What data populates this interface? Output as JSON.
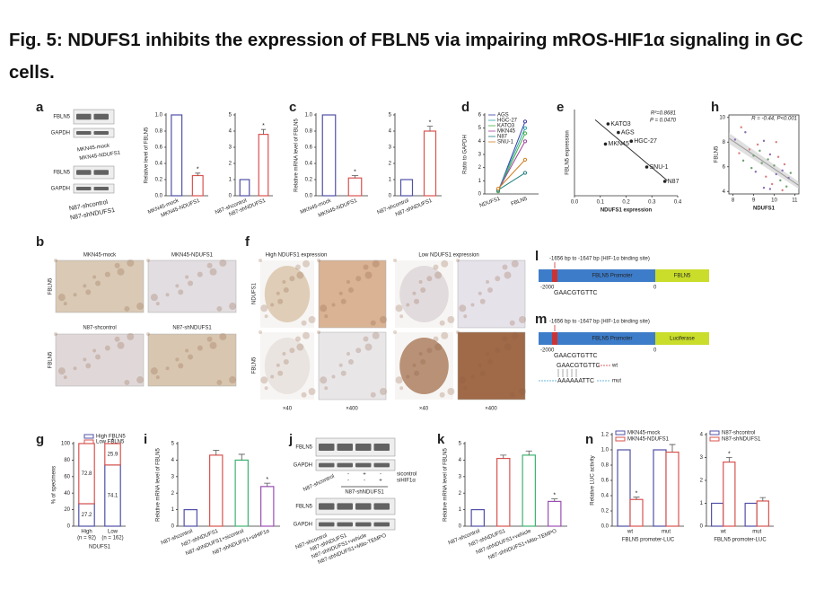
{
  "title": "Fig. 5: NDUFS1 inhibits the expression of FBLN5 via impairing mROS-HIF1α signaling in GC cells.",
  "panels": {
    "a": {
      "letter": "a",
      "blot_labels": [
        "FBLN5",
        "GAPDH",
        "FBLN5",
        "GAPDH"
      ],
      "lanes": [
        "MKN45-mock",
        "MKN45-NDUFS1",
        "N87-shcontrol",
        "N87-shNDUFS1"
      ],
      "charts": [
        {
          "type": "bar",
          "ylabel": "Relative level of FBLN5",
          "categories": [
            "MKN45-mock",
            "MKN45-NDUFS1"
          ],
          "values": [
            1.0,
            0.25
          ],
          "errors": [
            0,
            0.03
          ],
          "colors": [
            "#5050a8",
            "#d9534f"
          ],
          "ylim": [
            0,
            1.0
          ],
          "yticks": [
            {
              "value": 0,
              "label": "0.0"
            },
            {
              "value": 0.2,
              "label": "0.2"
            },
            {
              "value": 0.4,
              "label": "0.4"
            },
            {
              "value": 0.6,
              "label": "0.6"
            },
            {
              "value": 0.8,
              "label": "0.8"
            },
            {
              "value": 1.0,
              "label": "1.0"
            }
          ],
          "asterisk": "*",
          "asterisk_on": [
            1
          ]
        },
        {
          "type": "bar",
          "categories": [
            "N87-shcontrol",
            "N87-shNDUFS1"
          ],
          "values": [
            1,
            3.8
          ],
          "errors": [
            0,
            0.3
          ],
          "colors": [
            "#5050a8",
            "#d9534f"
          ],
          "ylim": [
            0,
            5
          ],
          "yticks": [
            0,
            1,
            2,
            3,
            4,
            5
          ],
          "asterisk": "*",
          "asterisk_on": [
            1
          ]
        }
      ]
    },
    "c": {
      "letter": "c",
      "charts": [
        {
          "type": "bar",
          "ylabel": "Relative mRNA level of FBLN5",
          "categories": [
            "MKN45-mock",
            "MKN45-NDUFS1"
          ],
          "values": [
            1.0,
            0.22
          ],
          "errors": [
            0,
            0.03
          ],
          "colors": [
            "#5050a8",
            "#d9534f"
          ],
          "ylim": [
            0,
            1.0
          ],
          "yticks": [
            {
              "value": 0,
              "label": "0.0"
            },
            {
              "value": 0.2,
              "label": "0.2"
            },
            {
              "value": 0.4,
              "label": "0.4"
            },
            {
              "value": 0.6,
              "label": "0.6"
            },
            {
              "value": 0.8,
              "label": "0.8"
            },
            {
              "value": 1.0,
              "label": "1.0"
            }
          ],
          "asterisk": "*",
          "asterisk_on": [
            1
          ]
        },
        {
          "type": "bar",
          "categories": [
            "N87-shcontrol",
            "N87-shNDUFS1"
          ],
          "values": [
            1,
            4.0
          ],
          "errors": [
            0,
            0.3
          ],
          "colors": [
            "#5050a8",
            "#d9534f"
          ],
          "ylim": [
            0,
            5
          ],
          "yticks": [
            0,
            1,
            2,
            3,
            4,
            5
          ],
          "asterisk": "*",
          "asterisk_on": [
            1
          ]
        }
      ]
    },
    "d": {
      "letter": "d",
      "charts": [
        {
          "type": "line",
          "ylabel": "Ratio to GAPDH",
          "categories": [
            "NDUFS1",
            "FBLN5"
          ],
          "ylim": [
            0,
            6
          ],
          "yticks": [
            0,
            1,
            2,
            3,
            4,
            5,
            6
          ],
          "series": [
            {
              "name": "AGS",
              "color": "#3a3aa8",
              "values": [
                0.2,
                5.5
              ]
            },
            {
              "name": "HGC-27",
              "color": "#2aa8a8",
              "values": [
                0.25,
                5.0
              ]
            },
            {
              "name": "KATO3",
              "color": "#40b040",
              "values": [
                0.2,
                4.6
              ]
            },
            {
              "name": "MKN45",
              "color": "#a040a0",
              "values": [
                0.3,
                4.0
              ]
            },
            {
              "name": "N87",
              "color": "#208080",
              "values": [
                0.3,
                1.6
              ]
            },
            {
              "name": "SNU-1",
              "color": "#d08020",
              "values": [
                0.4,
                2.6
              ]
            }
          ]
        }
      ]
    },
    "e": {
      "letter": "e",
      "charts": [
        {
          "type": "scatter",
          "xlabel": "NDUFS1 expression",
          "ylabel": "FBLN5 expression",
          "xlim": [
            0,
            0.4
          ],
          "ylim": [
            2.4,
            5.4
          ],
          "xticks": [
            {
              "value": 0,
              "label": "0.0"
            },
            {
              "value": 0.1,
              "label": "0.1"
            },
            {
              "value": 0.2,
              "label": "0.2"
            },
            {
              "value": 0.3,
              "label": "0.3"
            },
            {
              "value": 0.4,
              "label": "0.4"
            }
          ],
          "names": [
            "KATO3",
            "AGS",
            "MKN45",
            "HGC-27",
            "SNU-1",
            "N87"
          ],
          "x": [
            0.13,
            0.17,
            0.12,
            0.22,
            0.28,
            0.35
          ],
          "y": [
            4.9,
            4.6,
            4.2,
            4.3,
            3.4,
            2.9
          ],
          "annotations": [
            "R²=0.8681",
            "P = 0.0470"
          ]
        }
      ]
    },
    "h": {
      "letter": "h",
      "charts": [
        {
          "type": "scatter",
          "xlabel": "NDUFS1",
          "ylabel": "FBLN5",
          "xlim": [
            7.8,
            11.2
          ],
          "ylim": [
            3.8,
            10.2
          ],
          "xticks": [
            8,
            9,
            10,
            11
          ],
          "yticks": [
            4,
            6,
            8,
            10
          ],
          "x": [
            8.1,
            8.3,
            8.5,
            8.6,
            8.8,
            9.0,
            9.1,
            9.2,
            9.4,
            9.5,
            9.6,
            9.7,
            9.8,
            9.9,
            10.0,
            10.1,
            10.2,
            10.3,
            10.4,
            10.5,
            10.6,
            10.7,
            8.4,
            9.3,
            9.8,
            10.1,
            8.9,
            9.5,
            10.4,
            10.8
          ],
          "y": [
            8.2,
            7.1,
            6.5,
            8.8,
            7.4,
            6.9,
            5.6,
            7.8,
            6.3,
            8.1,
            5.2,
            6.6,
            7.0,
            4.6,
            6.1,
            5.4,
            6.8,
            4.9,
            5.7,
            6.2,
            4.4,
            5.1,
            9.2,
            7.3,
            4.2,
            8.0,
            5.9,
            4.3,
            4.1,
            5.5
          ],
          "annotations": [
            "R = -0.44, P<0.001"
          ]
        }
      ]
    },
    "b": {
      "letter": "b",
      "columns": [
        "MKN45-mock",
        "MKN45-NDUFS1"
      ],
      "columns2": [
        "N87-shcontrol",
        "N87-shNDUFS1"
      ],
      "rows": [
        "FBLN5",
        "FBLN5"
      ]
    },
    "f": {
      "letter": "f",
      "columns": [
        "High NDUFS1 expression",
        "Low NDUFS1 expression"
      ],
      "rows": [
        "NDUFS1",
        "FBLN5"
      ],
      "magnifications": [
        "×40",
        "×400",
        "×40",
        "×400"
      ]
    },
    "l": {
      "letter": "l",
      "site": "-1656 bp to -1647 bp (HIF-1α binding site)",
      "promoter": "FBLN5 Promoter",
      "gene": "FBLN5",
      "start": "-2000",
      "end": "0",
      "sequence": "GAACGTGTTC"
    },
    "m": {
      "letter": "m",
      "site": "-1656 bp to -1647 bp (HIF-1α binding site)",
      "promoter": "FBLN5 Promoter",
      "gene": "Luciferase",
      "start": "-2000",
      "end": "0",
      "sequence": "GAACGTGTTC",
      "wt_sequence": "GAACGTGTTC",
      "wt": "wt",
      "mut_sequence": "AAAAAATTC",
      "mut": "mut"
    },
    "g": {
      "letter": "g",
      "charts": [
        {
          "type": "stacked_bar",
          "ylabel": "% of specimens",
          "xlabel": "NDUFS1",
          "categories": [
            "High",
            "Low"
          ],
          "sample_sizes": [
            "(n = 92)",
            "(n = 162)"
          ],
          "ylim": [
            0,
            100
          ],
          "yticks": [
            0,
            20,
            40,
            60,
            80,
            100
          ],
          "series": [
            {
              "name": "High FBLN5",
              "color": "#5050a8",
              "values": [
                27.2,
                74.1
              ]
            },
            {
              "name": "Low FBLN5",
              "color": "#d9534f",
              "values": [
                72.8,
                25.9
              ]
            }
          ],
          "asterisk": "*"
        }
      ]
    },
    "i": {
      "letter": "i",
      "charts": [
        {
          "type": "bar",
          "ylabel": "Relative mRNA level of FBLN5",
          "categories": [
            "N87-shcontrol",
            "N87-shNDUFS1",
            "N87-shNDUFS1+sicontrol",
            "N87-shNDUFS1+siHIF1α"
          ],
          "values": [
            1,
            4.3,
            4.0,
            2.4
          ],
          "errors": [
            0,
            0.3,
            0.35,
            0.2
          ],
          "colors": [
            "#5050a8",
            "#d9534f",
            "#3cb371",
            "#9b4fb5"
          ],
          "ylim": [
            0,
            5
          ],
          "yticks": [
            0,
            1,
            2,
            3,
            4,
            5
          ],
          "asterisk": "*",
          "asterisk_on": [
            3
          ]
        }
      ]
    },
    "j": {
      "letter": "j",
      "blot_labels": [
        "FBLN5",
        "GAPDH",
        "FBLN5",
        "GAPDH"
      ],
      "treatments": [
        "sicontrol",
        "siHIF1α"
      ],
      "signs": [
        [
          "-",
          "+",
          "-"
        ],
        [
          "-",
          "-",
          "+"
        ]
      ],
      "group": "N87-shNDUFS1",
      "lanes_top": [
        "N87-shcontrol"
      ],
      "lanes_bottom": [
        "N87-shcontrol",
        "N87-shNDUFS1",
        "N87-shNDUFS1+vehicle",
        "N87-shNDUFS1+Mito-TEMPO"
      ]
    },
    "k": {
      "letter": "k",
      "charts": [
        {
          "type": "bar",
          "ylabel": "Relative mRNA level of FBLN5",
          "categories": [
            "N87-shcontrol",
            "N87-shNDUFS1",
            "N87-shNDUFS1+vehicle",
            "N87-shNDUFS1+Mito-TEMPO"
          ],
          "values": [
            1,
            4.1,
            4.3,
            1.5
          ],
          "errors": [
            0,
            0.2,
            0.25,
            0.15
          ],
          "colors": [
            "#5050a8",
            "#d9534f",
            "#3cb371",
            "#9b4fb5"
          ],
          "ylim": [
            0,
            5
          ],
          "yticks": [
            0,
            1,
            2,
            3,
            4,
            5
          ],
          "asterisk": "*",
          "asterisk_on": [
            3
          ]
        }
      ]
    },
    "n": {
      "letter": "n",
      "charts": [
        {
          "type": "grouped_bar",
          "ylabel": "Relative LUC activity",
          "xlabel": "FBLN5 promoter-LUC",
          "categories": [
            "wt",
            "mut"
          ],
          "ylim": [
            0,
            1.2
          ],
          "yticks": [
            {
              "value": 0,
              "label": "0.0"
            },
            {
              "value": 0.2,
              "label": "0.2"
            },
            {
              "value": 0.4,
              "label": "0.4"
            },
            {
              "value": 0.6,
              "label": "0.6"
            },
            {
              "value": 0.8,
              "label": "0.8"
            },
            {
              "value": 1.0,
              "label": "1.0"
            },
            {
              "value": 1.2,
              "label": "1.2"
            }
          ],
          "series": [
            {
              "name": "MKN45-mock",
              "color": "#5050a8",
              "values": [
                1.0,
                1.0
              ],
              "errors": [
                0,
                0
              ]
            },
            {
              "name": "MKN45-NDUFS1",
              "color": "#d9534f",
              "values": [
                0.35,
                0.97
              ],
              "errors": [
                0.03,
                0.1
              ],
              "asterisk_on": [
                0
              ]
            }
          ],
          "asterisk": "*"
        },
        {
          "type": "grouped_bar",
          "xlabel": "FBLN5 promoter-LUC",
          "categories": [
            "wt",
            "mut"
          ],
          "ylim": [
            0,
            4
          ],
          "yticks": [
            0,
            1,
            2,
            3,
            4
          ],
          "series": [
            {
              "name": "N87-shcontrol",
              "color": "#5050a8",
              "values": [
                1,
                1
              ],
              "errors": [
                0,
                0
              ]
            },
            {
              "name": "N87-shNDUFS1",
              "color": "#d9534f",
              "values": [
                2.8,
                1.1
              ],
              "errors": [
                0.2,
                0.15
              ],
              "asterisk_on": [
                0
              ]
            }
          ],
          "asterisk": "*"
        }
      ]
    }
  }
}
